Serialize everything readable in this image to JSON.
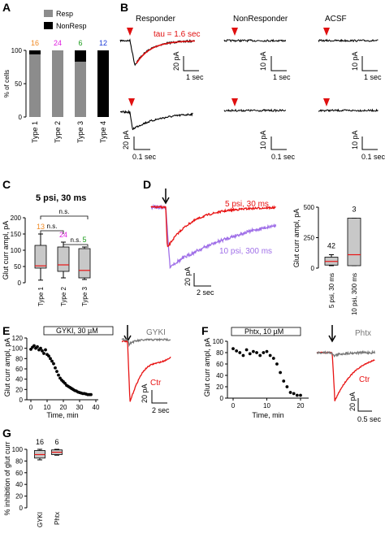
{
  "panels": {
    "A": {
      "label": "A",
      "legend": [
        {
          "name": "Resp",
          "color": "#8c8c8c"
        },
        {
          "name": "NonResp",
          "color": "#000000"
        }
      ],
      "ylabel": "% of cells",
      "yticks": [
        "0",
        "50",
        "100"
      ],
      "counts": [
        "16",
        "24",
        "6",
        "12"
      ],
      "count_colors": [
        "#f08a24",
        "#e020e0",
        "#1a9b1a",
        "#1a3ad8"
      ]
    },
    "B": {
      "label": "B",
      "titles": [
        "Responder",
        "NonResponder",
        "ACSF"
      ],
      "tau": "tau = 1.6 sec",
      "scalebars": [
        "20 pA",
        "1 sec",
        "10 pA",
        "1 sec",
        "10 pA",
        "1 sec",
        "20 pA",
        "0.1 sec",
        "10 pA",
        "0.1 sec",
        "10 pA",
        "0.1 sec"
      ]
    },
    "C": {
      "label": "C",
      "title": "5 psi, 30 ms",
      "ylabel": "Glut curr ampl, pA",
      "yticks": [
        "0",
        "50",
        "100",
        "150",
        "200"
      ],
      "ns": [
        "n.s.",
        "n.s.",
        "n.s."
      ],
      "counts": [
        "13",
        "24",
        "5"
      ],
      "count_colors": [
        "#f08a24",
        "#e020e0",
        "#1a9b1a"
      ]
    },
    "D": {
      "label": "D",
      "trace_labels": [
        "5 psi, 30 ms",
        "10 psi, 300 ms"
      ],
      "scalebars": [
        "20 pA",
        "2 sec"
      ],
      "ylabel": "Glut curr ampl, pA",
      "yticks": [
        "0",
        "250",
        "500"
      ],
      "counts": [
        "42",
        "3"
      ]
    },
    "E": {
      "label": "E",
      "bar_label": "GYKI, 30 µM",
      "ylabel": "Glut curr ampl, pA",
      "xlabel": "Time, min",
      "yticks": [
        "0",
        "20",
        "40",
        "60",
        "80",
        "100",
        "120"
      ],
      "xticks": [
        "0",
        "10",
        "20",
        "30",
        "40"
      ],
      "trace_labels": [
        "GYKI",
        "Ctr"
      ],
      "scalebars": [
        "20 pA",
        "2 sec"
      ]
    },
    "F": {
      "label": "F",
      "bar_label": "Phtx, 10 µM",
      "ylabel": "Glut curr ampl, pA",
      "xlabel": "Time, min",
      "yticks": [
        "0",
        "20",
        "40",
        "60",
        "80",
        "100"
      ],
      "xticks": [
        "0",
        "10",
        "20"
      ],
      "trace_labels": [
        "Phtx",
        "Ctr"
      ],
      "scalebars": [
        "20 pA",
        "0.5 sec"
      ]
    },
    "G": {
      "label": "G",
      "ylabel": "% inhibition of glut curr",
      "yticks": [
        "0",
        "20",
        "40",
        "60",
        "80",
        "100"
      ],
      "counts": [
        "16",
        "6"
      ]
    }
  },
  "chart_data": [
    {
      "type": "bar",
      "stacked": true,
      "categories": [
        "Type 1",
        "Type 2",
        "Type 3",
        "Type 4"
      ],
      "series": [
        {
          "name": "Resp",
          "values": [
            94,
            100,
            83,
            0
          ]
        },
        {
          "name": "NonResp",
          "values": [
            6,
            0,
            17,
            100
          ]
        }
      ],
      "ylim": [
        0,
        100
      ]
    },
    {
      "type": "box",
      "categories": [
        "Type 1",
        "Type 2",
        "Type 3"
      ],
      "boxes": [
        {
          "whislo": 8,
          "q1": 45,
          "med": 52,
          "q3": 115,
          "whishi": 150
        },
        {
          "whislo": 15,
          "q1": 35,
          "med": 55,
          "q3": 110,
          "whishi": 125
        },
        {
          "whislo": 10,
          "q1": 15,
          "med": 38,
          "q3": 105,
          "whishi": 110
        }
      ],
      "ylim": [
        0,
        200
      ]
    },
    {
      "type": "box",
      "categories": [
        "5 psi, 30 ms",
        "10 psi, 300 ms"
      ],
      "boxes": [
        {
          "whislo": 20,
          "q1": 25,
          "med": 55,
          "q3": 90,
          "whishi": 110
        },
        {
          "whislo": 20,
          "q1": 20,
          "med": 110,
          "q3": 410,
          "whishi": 410
        }
      ],
      "ylim": [
        0,
        500
      ]
    },
    {
      "type": "scatter",
      "x": [
        0,
        1,
        2,
        3,
        4,
        5,
        6,
        7,
        8,
        9,
        10,
        11,
        12,
        13,
        14,
        15,
        16,
        17,
        18,
        19,
        20,
        21,
        22,
        23,
        24,
        25,
        26,
        27,
        28,
        29,
        30,
        31,
        32,
        33,
        34,
        35,
        36,
        37
      ],
      "y": [
        98,
        102,
        105,
        100,
        103,
        97,
        100,
        95,
        90,
        97,
        88,
        85,
        80,
        75,
        70,
        62,
        55,
        48,
        42,
        38,
        35,
        32,
        28,
        26,
        24,
        22,
        20,
        18,
        17,
        15,
        14,
        13,
        12,
        12,
        11,
        10,
        10,
        10
      ],
      "xlim": [
        0,
        40
      ],
      "ylim": [
        0,
        120
      ]
    },
    {
      "type": "scatter",
      "x": [
        0,
        1,
        2,
        3,
        4,
        5,
        6,
        7,
        8,
        9,
        10,
        11,
        12,
        13,
        14,
        15,
        16,
        17,
        18,
        19,
        20
      ],
      "y": [
        87,
        83,
        80,
        75,
        85,
        78,
        82,
        80,
        75,
        80,
        82,
        75,
        70,
        60,
        45,
        30,
        20,
        10,
        8,
        5,
        5
      ],
      "xlim": [
        0,
        21
      ],
      "ylim": [
        0,
        100
      ]
    },
    {
      "type": "box",
      "categories": [
        "GYKI",
        "Phtx"
      ],
      "boxes": [
        {
          "whislo": 82,
          "q1": 85,
          "med": 91,
          "q3": 98,
          "whishi": 100
        },
        {
          "whislo": 90,
          "q1": 91,
          "med": 95,
          "q3": 99,
          "whishi": 100
        }
      ],
      "ylim": [
        0,
        100
      ]
    }
  ]
}
